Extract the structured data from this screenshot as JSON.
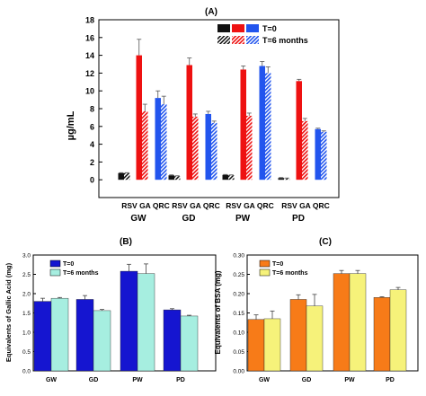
{
  "chart_data": [
    {
      "type": "bar",
      "panel_label": "(A)",
      "ylabel": "µg/mL",
      "ylim": [
        -2,
        18
      ],
      "yticks": [
        0,
        2,
        4,
        6,
        8,
        10,
        12,
        14,
        16,
        18
      ],
      "groups": [
        "GW",
        "GD",
        "PW",
        "PD"
      ],
      "subcategories": [
        "RSV",
        "GA",
        "QRC"
      ],
      "legend": {
        "position": "top-right",
        "entries": [
          "T=0",
          "T=6 months"
        ]
      },
      "series": [
        {
          "name": "T=0",
          "values": {
            "RSV": [
              0.75,
              0.5,
              0.55,
              0.2
            ],
            "GA": [
              14.0,
              12.9,
              12.4,
              11.1
            ],
            "QRC": [
              9.2,
              7.4,
              12.8,
              5.7
            ]
          },
          "errors": {
            "RSV": [
              0.05,
              0.05,
              0.05,
              0.05
            ],
            "GA": [
              1.8,
              0.8,
              0.4,
              0.2
            ],
            "QRC": [
              0.8,
              0.3,
              0.5,
              0.1
            ]
          }
        },
        {
          "name": "T=6 months",
          "values": {
            "RSV": [
              0.75,
              0.4,
              0.5,
              0.15
            ],
            "GA": [
              7.7,
              7.1,
              7.2,
              6.6
            ],
            "QRC": [
              8.5,
              6.4,
              12.0,
              5.4
            ]
          },
          "errors": {
            "RSV": [
              0.05,
              0.05,
              0.05,
              0.05
            ],
            "GA": [
              0.8,
              0.3,
              0.3,
              0.3
            ],
            "QRC": [
              0.9,
              0.2,
              0.7,
              0.1
            ]
          }
        }
      ],
      "colors": {
        "RSV": "#111111",
        "GA": "#ee1111",
        "QRC": "#2255ee"
      }
    },
    {
      "type": "bar",
      "panel_label": "(B)",
      "ylabel": "Equivalents of Gallic Acid (mg)",
      "categories": [
        "GW",
        "GD",
        "PW",
        "PD"
      ],
      "ylim": [
        0.0,
        3.0
      ],
      "yticks": [
        "0.0",
        "0.5",
        "1.0",
        "1.5",
        "2.0",
        "2.5",
        "3.0"
      ],
      "legend": {
        "position": "top-left"
      },
      "series": [
        {
          "name": "T=0",
          "values": [
            1.8,
            1.85,
            2.58,
            1.58
          ],
          "errors": [
            0.08,
            0.1,
            0.18,
            0.03
          ],
          "color": "#1515d0"
        },
        {
          "name": "T=6 months",
          "values": [
            1.88,
            1.56,
            2.52,
            1.42
          ],
          "errors": [
            0.02,
            0.03,
            0.25,
            0.02
          ],
          "color": "#a6eee0"
        }
      ]
    },
    {
      "type": "bar",
      "panel_label": "(C)",
      "ylabel": "Equivalents of BSA (mg)",
      "categories": [
        "GW",
        "GD",
        "PW",
        "PD"
      ],
      "ylim": [
        0.0,
        0.3
      ],
      "yticks": [
        "0.00",
        "0.05",
        "0.10",
        "0.15",
        "0.20",
        "0.25",
        "0.30"
      ],
      "legend": {
        "position": "top-left"
      },
      "series": [
        {
          "name": "T=0",
          "values": [
            0.133,
            0.185,
            0.252,
            0.19
          ],
          "errors": [
            0.012,
            0.012,
            0.008,
            0.002
          ],
          "color": "#f77b18"
        },
        {
          "name": "T=6 months",
          "values": [
            0.135,
            0.168,
            0.252,
            0.21
          ],
          "errors": [
            0.02,
            0.03,
            0.008,
            0.006
          ],
          "color": "#f6f27a"
        }
      ]
    }
  ]
}
